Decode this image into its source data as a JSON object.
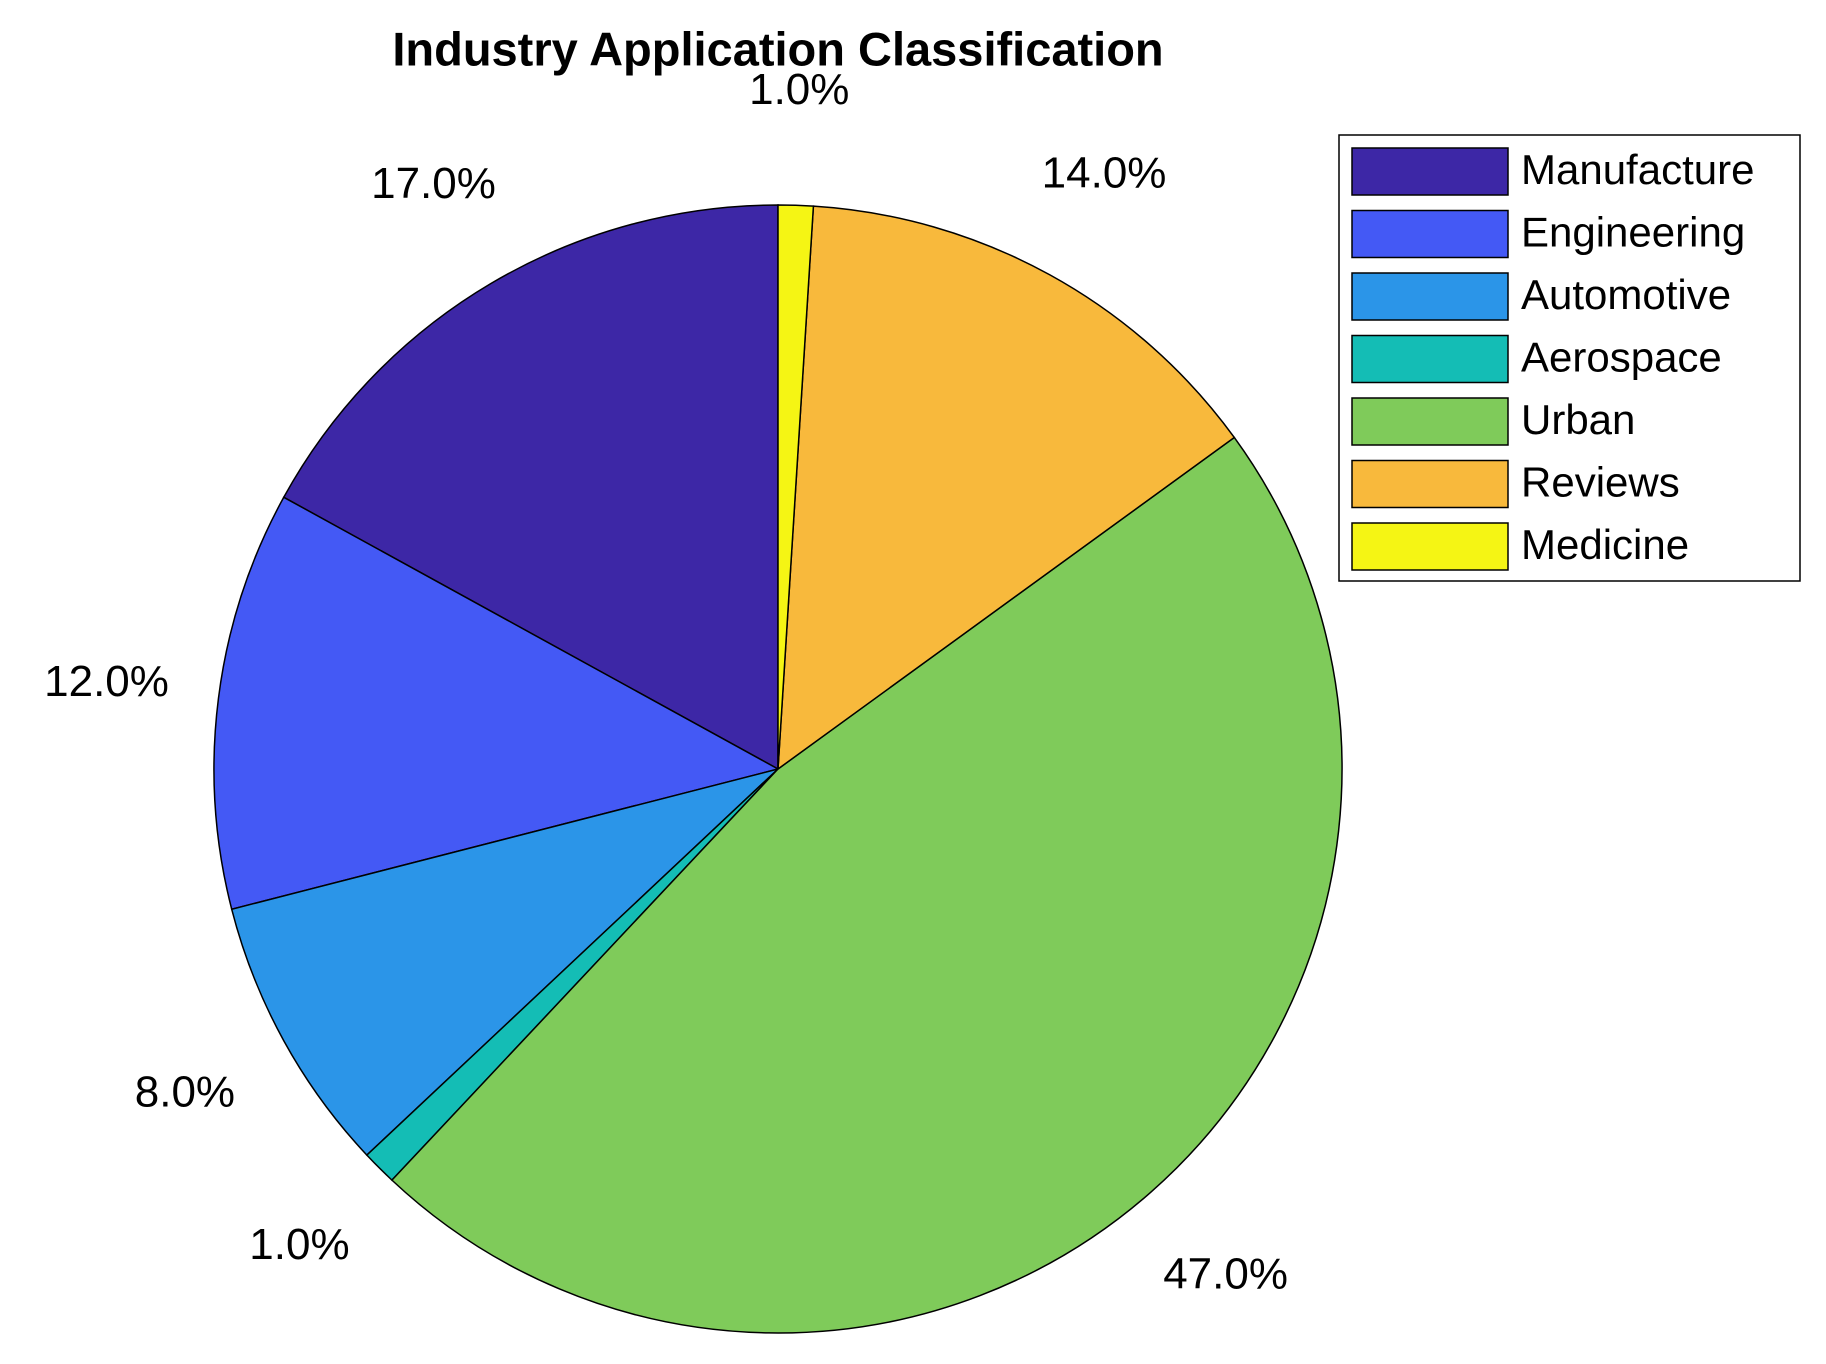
{
  "chart_data": {
    "type": "pie",
    "title": "Industry Application Classification",
    "categories": [
      "Manufacture",
      "Engineering",
      "Automotive",
      "Aerospace",
      "Urban",
      "Reviews",
      "Medicine"
    ],
    "values": [
      17,
      12,
      8,
      1,
      47,
      14,
      1
    ],
    "value_labels": [
      "17.0%",
      "12.0%",
      "8.0%",
      "1.0%",
      "47.0%",
      "14.0%",
      "1.0%"
    ],
    "colors": [
      "#3d27a6",
      "#4459f5",
      "#2b95e8",
      "#14bdb5",
      "#7fcb5a",
      "#f8b93c",
      "#f5f514"
    ],
    "legend": "northeast"
  }
}
